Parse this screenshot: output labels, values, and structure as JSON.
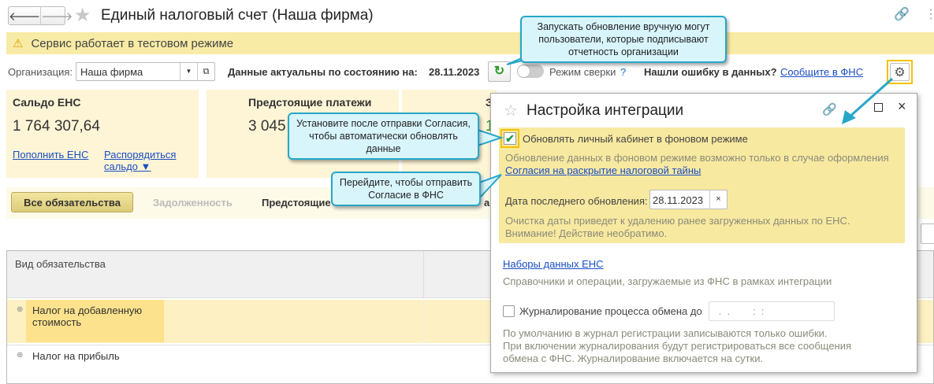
{
  "header": {
    "title": "Единый налоговый счет (Наша фирма)",
    "back_icon": "arrow-left",
    "forward_icon": "arrow-right"
  },
  "warning": {
    "text": "Сервис работает в тестовом режиме"
  },
  "filters": {
    "org_label": "Организация:",
    "org_value": "Наша фирма",
    "date_label": "Данные актуальны по состоянию на:",
    "date_value": "28.11.2023",
    "reconcile_label": "Режим сверки",
    "help": "?",
    "error_question": "Нашли ошибку в данных?",
    "error_link": "Сообщите в ФНС"
  },
  "cards": [
    {
      "title": "Сальдо ЕНС",
      "value": "1 764 307,64",
      "link1": "Пополнить ЕНС",
      "link2": "Распорядиться сальдо ▼"
    },
    {
      "title": "Предстоящие платежи",
      "value": "3 045"
    },
    {
      "title": "З",
      "value": "1"
    }
  ],
  "tabs": [
    {
      "label": "Все обязательства",
      "active": true
    },
    {
      "label": "Задолженность"
    },
    {
      "label": "Предстоящие"
    },
    {
      "label": "а"
    }
  ],
  "table": {
    "columns": [
      "Вид обязательства"
    ],
    "rows": [
      "Налог на добавленную стоимость",
      "Налог на прибыль"
    ]
  },
  "callouts": {
    "refresh": "Запускать обновление вручную могут пользователи, которые подписывают отчетность организации",
    "checkbox": "Установите после отправки Согласия, чтобы автоматически обновлять данные",
    "consent": "Перейдите, чтобы отправить Согласие в ФНС"
  },
  "dialog": {
    "title": "Настройка интеграции",
    "bg_update_label": "Обновлять личный кабинет в фоновом режиме",
    "bg_update_checked": true,
    "bg_note": "Обновление данных в фоновом режиме возможно только в случае оформления",
    "consent_link": "Согласия на раскрытие налоговой тайны",
    "last_update_label": "Дата последнего обновления:",
    "last_update_value": "28.11.2023",
    "clear_note1": "Очистка даты приведет к удалению ранее загруженных данных по ЕНС.",
    "clear_note2": "Внимание! Действие необратимо.",
    "datasets_link": "Наборы данных ЕНС",
    "datasets_note": "Справочники и операции, загружаемые из ФНС в рамках интеграции",
    "logging_label": "Журналирование процесса обмена до",
    "logging_checked": false,
    "logging_value": " .  .        :  :",
    "log_note1": "По умолчанию в журнал регистрации записываются только ошибки.",
    "log_note2": "При включении журналирования будут регистрироваться все сообщения",
    "log_note3": "обмена с ФНС. Журналирование включается на сутки."
  },
  "colors": {
    "accent_yellow": "#f8eba6",
    "callout": "#d8f5fc",
    "callout_border": "#28a6c8",
    "link": "#1a4ec4"
  }
}
